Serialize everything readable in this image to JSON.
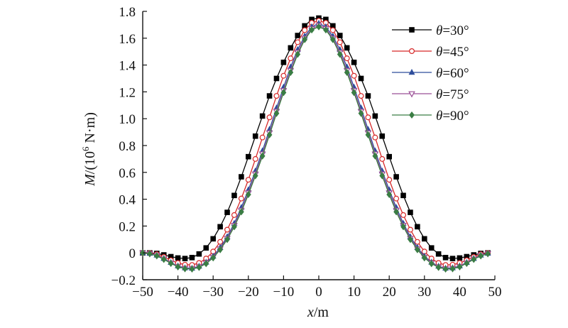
{
  "chart_data": {
    "type": "line",
    "xlabel": {
      "var": "x",
      "unit": "/m"
    },
    "ylabel": {
      "var": "M",
      "unit_prefix": "/(10",
      "unit_exp": "6",
      "unit_suffix": " N·m)"
    },
    "xlim": [
      -50,
      50
    ],
    "ylim": [
      -0.2,
      1.8
    ],
    "x_ticks": [
      -50,
      -40,
      -30,
      -20,
      -10,
      0,
      10,
      20,
      30,
      40,
      50
    ],
    "x_tick_labels": [
      "−50",
      "−40",
      "−30",
      "−20",
      "−10",
      "0",
      "10",
      "20",
      "30",
      "40",
      "50"
    ],
    "y_ticks": [
      -0.2,
      0,
      0.2,
      0.4,
      0.6,
      0.8,
      1.0,
      1.2,
      1.4,
      1.6,
      1.8
    ],
    "y_tick_labels": [
      "−0.2",
      "0",
      "0.2",
      "0.4",
      "0.6",
      "0.8",
      "1.0",
      "1.2",
      "1.4",
      "1.6",
      "1.8"
    ],
    "grid": false,
    "legend_position": "top-right",
    "x": [
      -50,
      -48,
      -46,
      -44,
      -42,
      -40,
      -38,
      -36,
      -34,
      -32,
      -30,
      -28,
      -26,
      -24,
      -22,
      -20,
      -18,
      -16,
      -14,
      -12,
      -10,
      -8,
      -6,
      -4,
      -2,
      0,
      2,
      4,
      6,
      8,
      10,
      12,
      14,
      16,
      18,
      20,
      22,
      24,
      26,
      28,
      30,
      32,
      34,
      36,
      38,
      40,
      42,
      44,
      46,
      48
    ],
    "series": [
      {
        "name": "θ=30°",
        "color": "#000000",
        "marker": "square",
        "values": [
          0.0,
          0.0,
          -0.004,
          -0.015,
          -0.028,
          -0.038,
          -0.042,
          -0.035,
          -0.008,
          0.037,
          0.105,
          0.195,
          0.302,
          0.428,
          0.567,
          0.717,
          0.87,
          1.02,
          1.17,
          1.3,
          1.42,
          1.528,
          1.62,
          1.692,
          1.74,
          1.75,
          1.74,
          1.692,
          1.62,
          1.528,
          1.42,
          1.3,
          1.17,
          1.02,
          0.87,
          0.717,
          0.567,
          0.428,
          0.302,
          0.195,
          0.105,
          0.037,
          -0.008,
          -0.035,
          -0.042,
          -0.038,
          -0.028,
          -0.015,
          -0.004,
          0.0
        ]
      },
      {
        "name": "θ=45°",
        "color": "#d62728",
        "marker": "circle",
        "values": [
          0.0,
          -0.001,
          -0.01,
          -0.03,
          -0.055,
          -0.075,
          -0.088,
          -0.09,
          -0.075,
          -0.042,
          0.01,
          0.082,
          0.173,
          0.282,
          0.405,
          0.545,
          0.7,
          0.86,
          1.01,
          1.17,
          1.32,
          1.45,
          1.57,
          1.66,
          1.715,
          1.73,
          1.715,
          1.66,
          1.57,
          1.45,
          1.32,
          1.17,
          1.01,
          0.86,
          0.7,
          0.545,
          0.405,
          0.282,
          0.173,
          0.082,
          0.01,
          -0.042,
          -0.075,
          -0.09,
          -0.088,
          -0.075,
          -0.055,
          -0.03,
          -0.01,
          -0.001
        ]
      },
      {
        "name": "θ=60°",
        "color": "#2f4e9c",
        "marker": "triangle-up",
        "values": [
          0.0,
          -0.004,
          -0.018,
          -0.042,
          -0.072,
          -0.098,
          -0.112,
          -0.115,
          -0.1,
          -0.07,
          -0.025,
          0.04,
          0.12,
          0.22,
          0.338,
          0.47,
          0.61,
          0.76,
          0.92,
          1.08,
          1.235,
          1.385,
          1.515,
          1.615,
          1.685,
          1.71,
          1.685,
          1.615,
          1.515,
          1.385,
          1.235,
          1.08,
          0.92,
          0.76,
          0.61,
          0.47,
          0.338,
          0.22,
          0.12,
          0.04,
          -0.025,
          -0.07,
          -0.1,
          -0.115,
          -0.112,
          -0.098,
          -0.072,
          -0.042,
          -0.018,
          -0.004
        ]
      },
      {
        "name": "θ=75°",
        "color": "#9b4f96",
        "marker": "triangle-down",
        "values": [
          0.0,
          -0.005,
          -0.02,
          -0.046,
          -0.076,
          -0.102,
          -0.116,
          -0.118,
          -0.105,
          -0.075,
          -0.032,
          0.03,
          0.108,
          0.205,
          0.318,
          0.448,
          0.588,
          0.738,
          0.895,
          1.055,
          1.21,
          1.36,
          1.495,
          1.6,
          1.672,
          1.695,
          1.672,
          1.6,
          1.495,
          1.36,
          1.21,
          1.055,
          0.895,
          0.738,
          0.588,
          0.448,
          0.318,
          0.205,
          0.108,
          0.03,
          -0.032,
          -0.075,
          -0.105,
          -0.118,
          -0.116,
          -0.102,
          -0.076,
          -0.046,
          -0.02,
          -0.005
        ]
      },
      {
        "name": "θ=90°",
        "color": "#3a7d44",
        "marker": "diamond",
        "values": [
          0.0,
          -0.006,
          -0.022,
          -0.048,
          -0.078,
          -0.104,
          -0.118,
          -0.12,
          -0.108,
          -0.08,
          -0.037,
          0.024,
          0.1,
          0.195,
          0.306,
          0.435,
          0.575,
          0.722,
          0.88,
          1.04,
          1.195,
          1.345,
          1.48,
          1.59,
          1.662,
          1.685,
          1.662,
          1.59,
          1.48,
          1.345,
          1.195,
          1.04,
          0.88,
          0.722,
          0.575,
          0.435,
          0.306,
          0.195,
          0.1,
          0.024,
          -0.037,
          -0.08,
          -0.108,
          -0.12,
          -0.118,
          -0.104,
          -0.078,
          -0.048,
          -0.022,
          -0.006
        ]
      }
    ]
  }
}
